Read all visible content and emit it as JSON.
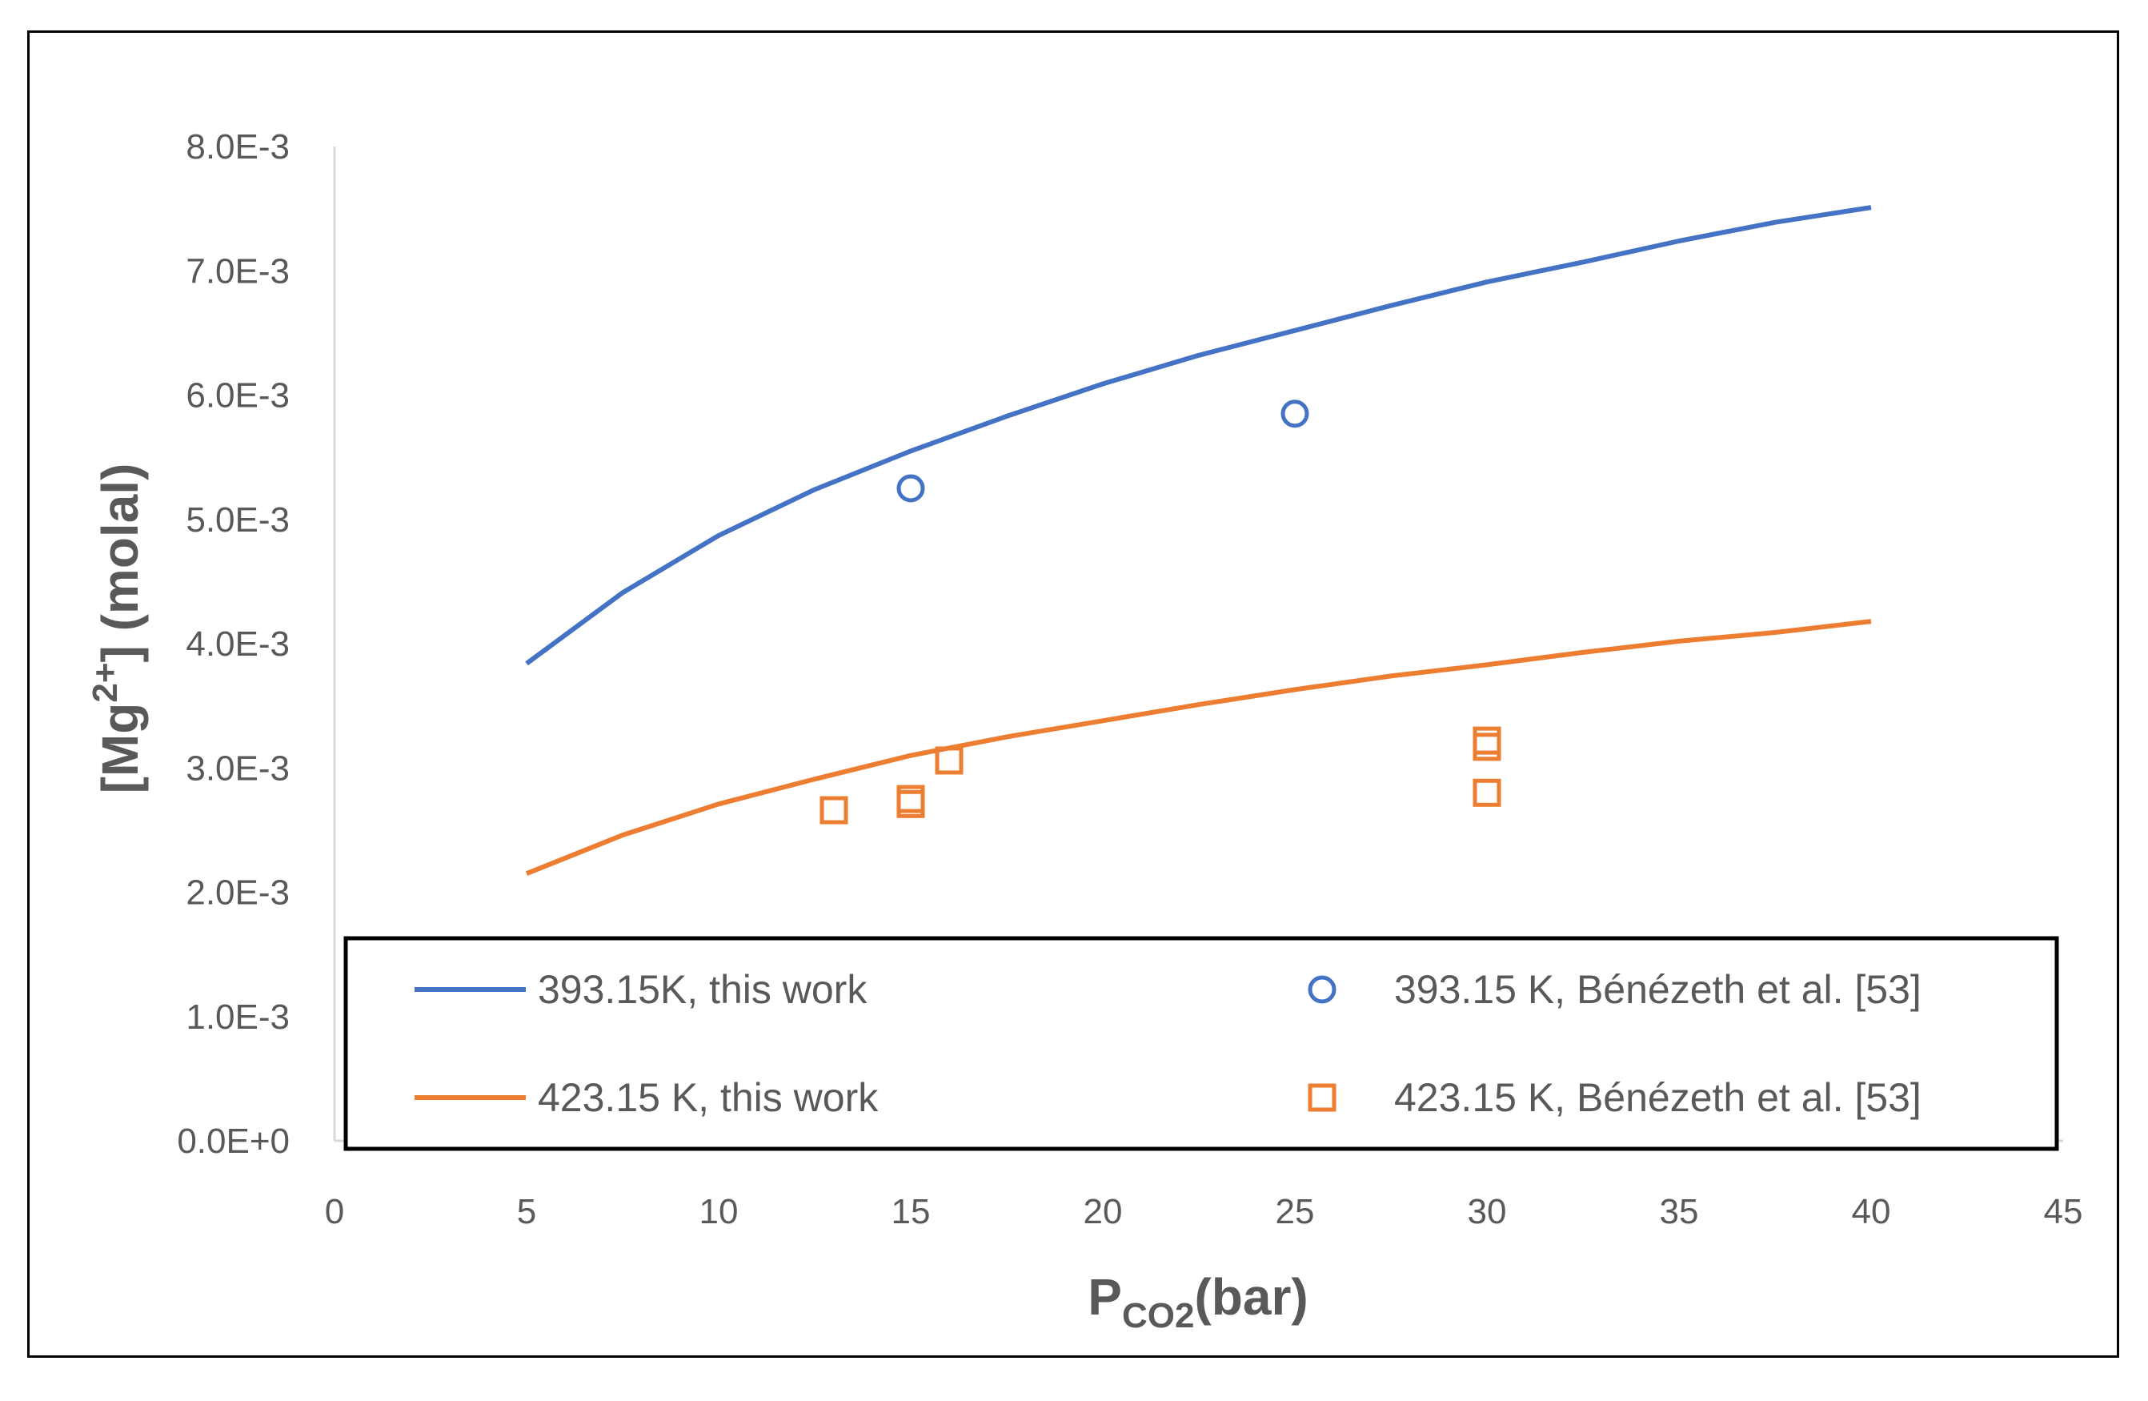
{
  "chart_data": {
    "type": "scatter",
    "title": "",
    "xlabel": {
      "main": "P",
      "sub": "CO2",
      "rest": "(bar)"
    },
    "ylabel": {
      "pre": "[Mg",
      "sup": "2+",
      "post": "] (molal)"
    },
    "xlim": [
      0,
      45
    ],
    "ylim": [
      0,
      0.008
    ],
    "x_ticks": [
      "0",
      "5",
      "10",
      "15",
      "20",
      "25",
      "30",
      "35",
      "40",
      "45"
    ],
    "x_tick_values": [
      0,
      5,
      10,
      15,
      20,
      25,
      30,
      35,
      40,
      45
    ],
    "y_ticks": [
      "0.0E+0",
      "1.0E-3",
      "2.0E-3",
      "3.0E-3",
      "4.0E-3",
      "5.0E-3",
      "6.0E-3",
      "7.0E-3",
      "8.0E-3"
    ],
    "y_tick_values": [
      0,
      0.001,
      0.002,
      0.003,
      0.004,
      0.005,
      0.006,
      0.007,
      0.008
    ],
    "grid": false,
    "legend_position": "bottom",
    "series": [
      {
        "name": "393.15K, this work",
        "kind": "line",
        "color": "#4472C4",
        "x": [
          5,
          7.5,
          10,
          12.5,
          15,
          17.5,
          20,
          22.5,
          25,
          27.5,
          30,
          32.5,
          35,
          37.5,
          40
        ],
        "y": [
          0.00384,
          0.00441,
          0.00487,
          0.00524,
          0.00555,
          0.00583,
          0.00609,
          0.00632,
          0.00652,
          0.00672,
          0.00691,
          0.00707,
          0.00724,
          0.00739,
          0.00751
        ]
      },
      {
        "name": "423.15 K, this work",
        "kind": "line",
        "color": "#ED7D31",
        "x": [
          5,
          7.5,
          10,
          12.5,
          15,
          17.5,
          20,
          22.5,
          25,
          27.5,
          30,
          32.5,
          35,
          37.5,
          40
        ],
        "y": [
          0.00215,
          0.00246,
          0.00271,
          0.00291,
          0.0031,
          0.00325,
          0.00338,
          0.00351,
          0.00363,
          0.00374,
          0.00383,
          0.00393,
          0.00402,
          0.00409,
          0.00418
        ]
      },
      {
        "name": "393.15 K, Bénézeth et al. [53]",
        "kind": "marker",
        "marker": "circle",
        "color": "#4472C4",
        "x": [
          15,
          25
        ],
        "y": [
          0.00525,
          0.00585
        ]
      },
      {
        "name": "423.15 K, Bénézeth et al. [53]",
        "kind": "marker",
        "marker": "square",
        "color": "#ED7D31",
        "x": [
          13,
          15,
          15,
          16,
          30,
          30,
          30
        ],
        "y": [
          0.00266,
          0.00271,
          0.00275,
          0.00306,
          0.00322,
          0.00317,
          0.0028
        ]
      }
    ]
  }
}
